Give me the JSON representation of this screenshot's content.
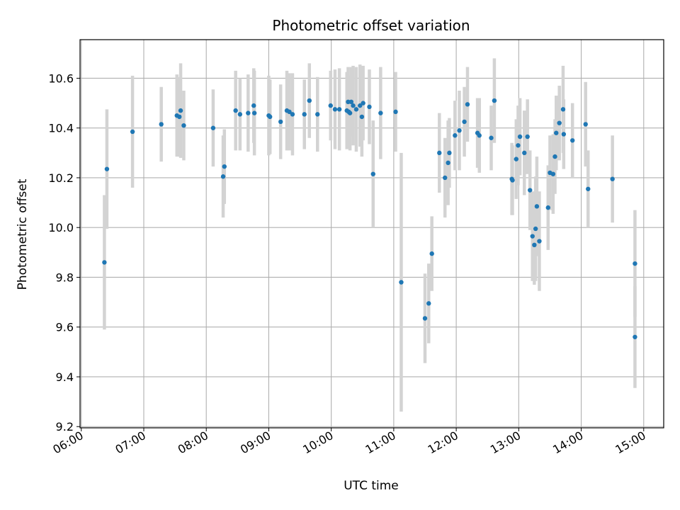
{
  "chart_data": {
    "type": "scatter",
    "title": "Photometric offset variation",
    "xlabel": "UTC time",
    "ylabel": "Photometric offset",
    "x_unit": "hours UTC",
    "xlim": [
      5.98,
      15.32
    ],
    "ylim": [
      9.195,
      10.755
    ],
    "grid": true,
    "x_ticks": [
      6,
      7,
      8,
      9,
      10,
      11,
      12,
      13,
      14,
      15
    ],
    "x_tick_labels": [
      "06:00",
      "07:00",
      "08:00",
      "09:00",
      "10:00",
      "11:00",
      "12:00",
      "13:00",
      "14:00",
      "15:00"
    ],
    "y_ticks": [
      9.2,
      9.4,
      9.6,
      9.8,
      10.0,
      10.2,
      10.4,
      10.6
    ],
    "y_tick_labels": [
      "9.2",
      "9.4",
      "9.6",
      "9.8",
      "10.0",
      "10.2",
      "10.4",
      "10.6"
    ],
    "colors": {
      "points": "#1f77b4",
      "errorbars": "#d3d3d3",
      "grid": "#b0b0b0"
    },
    "series": [
      {
        "x": [
          6.37,
          6.41,
          6.82,
          7.28,
          7.53,
          7.57,
          7.59,
          7.64,
          8.11,
          8.27,
          8.29,
          8.47,
          8.54,
          8.67,
          8.76,
          8.77,
          9.0,
          9.02,
          9.19,
          9.29,
          9.33,
          9.38,
          9.57,
          9.65,
          9.78,
          9.99,
          10.06,
          10.13,
          10.25,
          10.27,
          10.28,
          10.3,
          10.32,
          10.35,
          10.4,
          10.46,
          10.49,
          10.51,
          10.61,
          10.67,
          10.79,
          11.03,
          11.12,
          11.5,
          11.56,
          11.61,
          11.73,
          11.82,
          11.87,
          11.89,
          11.98,
          12.05,
          12.13,
          12.18,
          12.34,
          12.37,
          12.56,
          12.61,
          12.89,
          12.9,
          12.96,
          12.99,
          13.02,
          13.09,
          13.14,
          13.18,
          13.22,
          13.25,
          13.27,
          13.29,
          13.33,
          13.47,
          13.5,
          13.55,
          13.58,
          13.6,
          13.65,
          13.71,
          13.72,
          13.86,
          14.07,
          14.11,
          14.5,
          14.86
        ],
        "y": [
          9.86,
          10.235,
          10.385,
          10.415,
          10.45,
          10.445,
          10.47,
          10.41,
          10.4,
          10.205,
          10.245,
          10.47,
          10.455,
          10.46,
          10.49,
          10.46,
          10.45,
          10.445,
          10.425,
          10.47,
          10.465,
          10.455,
          10.455,
          10.51,
          10.455,
          10.49,
          10.475,
          10.475,
          10.47,
          10.505,
          10.465,
          10.46,
          10.505,
          10.49,
          10.475,
          10.49,
          10.445,
          10.5,
          10.485,
          10.215,
          10.46,
          10.465,
          9.78,
          9.635,
          9.695,
          9.895,
          10.3,
          10.2,
          10.26,
          10.3,
          10.37,
          10.39,
          10.425,
          10.495,
          10.38,
          10.37,
          10.36,
          10.51,
          10.195,
          10.19,
          10.275,
          10.33,
          10.365,
          10.3,
          10.365,
          10.15,
          9.965,
          9.93,
          9.995,
          10.085,
          9.945,
          10.08,
          10.22,
          10.215,
          10.285,
          10.38,
          10.42,
          10.475,
          10.375,
          10.35,
          10.415,
          10.155,
          10.195,
          9.855
        ],
        "err": [
          0.27,
          0.24,
          0.225,
          0.15,
          0.165,
          0.16,
          0.19,
          0.14,
          0.155,
          0.165,
          0.15,
          0.16,
          0.145,
          0.155,
          0.15,
          0.17,
          0.16,
          0.15,
          0.15,
          0.16,
          0.155,
          0.165,
          0.14,
          0.15,
          0.15,
          0.14,
          0.16,
          0.165,
          0.155,
          0.14,
          0.145,
          0.15,
          0.14,
          0.16,
          0.17,
          0.165,
          0.16,
          0.15,
          0.15,
          0.215,
          0.185,
          0.16,
          0.52,
          0.18,
          0.16,
          0.15,
          0.16,
          0.16,
          0.17,
          0.14,
          0.14,
          0.16,
          0.14,
          0.15,
          0.14,
          0.15,
          0.13,
          0.17,
          0.145,
          0.14,
          0.16,
          0.16,
          0.155,
          0.17,
          0.15,
          0.16,
          0.18,
          0.16,
          0.21,
          0.2,
          0.2,
          0.17,
          0.15,
          0.16,
          0.15,
          0.15,
          0.15,
          0.175,
          0.14,
          0.15,
          0.17,
          0.155,
          0.175,
          0.215
        ]
      },
      {
        "x": [
          14.86
        ],
        "y": [
          9.56
        ],
        "err": [
          0.205
        ]
      }
    ]
  }
}
